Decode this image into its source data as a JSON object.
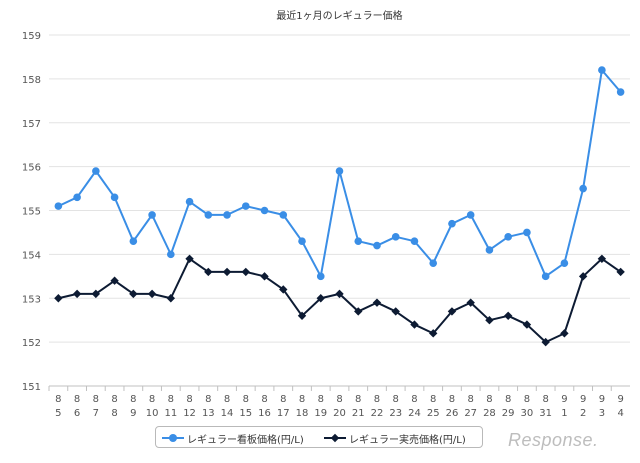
{
  "chart_data": {
    "type": "line",
    "title": "最近1ヶ月のレギュラー価格",
    "xlabel": "",
    "ylabel": "",
    "ylim": [
      151,
      159
    ],
    "yticks": [
      151,
      152,
      153,
      154,
      155,
      156,
      157,
      158,
      159
    ],
    "grid": true,
    "legend_position": "bottom",
    "categories": [
      [
        "8",
        "5"
      ],
      [
        "8",
        "6"
      ],
      [
        "8",
        "7"
      ],
      [
        "8",
        "8"
      ],
      [
        "8",
        "9"
      ],
      [
        "8",
        "10"
      ],
      [
        "8",
        "11"
      ],
      [
        "8",
        "12"
      ],
      [
        "8",
        "13"
      ],
      [
        "8",
        "14"
      ],
      [
        "8",
        "15"
      ],
      [
        "8",
        "16"
      ],
      [
        "8",
        "17"
      ],
      [
        "8",
        "18"
      ],
      [
        "8",
        "19"
      ],
      [
        "8",
        "20"
      ],
      [
        "8",
        "21"
      ],
      [
        "8",
        "22"
      ],
      [
        "8",
        "23"
      ],
      [
        "8",
        "24"
      ],
      [
        "8",
        "25"
      ],
      [
        "8",
        "26"
      ],
      [
        "8",
        "27"
      ],
      [
        "8",
        "28"
      ],
      [
        "8",
        "29"
      ],
      [
        "8",
        "30"
      ],
      [
        "8",
        "31"
      ],
      [
        "9",
        "1"
      ],
      [
        "9",
        "2"
      ],
      [
        "9",
        "3"
      ],
      [
        "9",
        "4"
      ]
    ],
    "series": [
      {
        "name": "レギュラー看板価格(円/L)",
        "color": "#3a8ee6",
        "marker": "circle",
        "values": [
          155.1,
          155.3,
          155.9,
          155.3,
          154.3,
          154.9,
          154.0,
          155.2,
          154.9,
          154.9,
          155.1,
          155.0,
          154.9,
          154.3,
          153.5,
          155.9,
          154.3,
          154.2,
          154.4,
          154.3,
          153.8,
          154.7,
          154.9,
          154.1,
          154.4,
          154.5,
          153.5,
          153.8,
          155.5,
          158.2,
          157.7
        ]
      },
      {
        "name": "レギュラー実売価格(円/L)",
        "color": "#0d1b33",
        "marker": "diamond",
        "values": [
          153.0,
          153.1,
          153.1,
          153.4,
          153.1,
          153.1,
          153.0,
          153.9,
          153.6,
          153.6,
          153.6,
          153.5,
          153.2,
          152.6,
          153.0,
          153.1,
          152.7,
          152.9,
          152.7,
          152.4,
          152.2,
          152.7,
          152.9,
          152.5,
          152.6,
          152.4,
          152.0,
          152.2,
          153.5,
          153.9,
          153.6
        ]
      }
    ]
  },
  "watermark": "Response."
}
